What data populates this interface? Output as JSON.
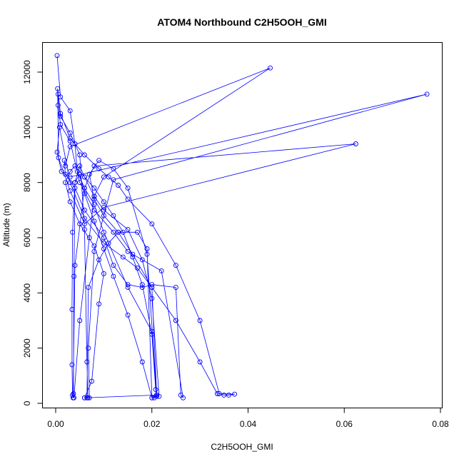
{
  "chart_data": {
    "type": "scatter",
    "title": "ATOM4 Northbound C2H5OOH_GMI",
    "xlabel": "C2H5OOH_GMI",
    "ylabel": "Altitude (m)",
    "xlim": [
      0.0,
      0.08
    ],
    "ylim": [
      0,
      12600
    ],
    "xticks": [
      0.0,
      0.02,
      0.04,
      0.06,
      0.08
    ],
    "xtick_labels": [
      "0.00",
      "0.02",
      "0.04",
      "0.06",
      "0.08"
    ],
    "yticks": [
      0,
      2000,
      4000,
      6000,
      8000,
      10000,
      12000
    ],
    "ytick_labels": [
      "0",
      "2000",
      "4000",
      "6000",
      "8000",
      "10000",
      "12000"
    ],
    "grid": false,
    "markers": "open-circle",
    "connected": true,
    "color": "#0000ff",
    "series": [
      {
        "x": [
          0.0003,
          0.001,
          0.003,
          0.004,
          0.0045,
          0.006,
          0.008,
          0.01,
          0.015,
          0.02,
          0.021,
          0.02,
          0.018,
          0.015,
          0.012,
          0.01,
          0.008,
          0.006,
          0.005,
          0.004,
          0.0035,
          0.0034,
          0.0034,
          0.0035,
          0.0038,
          0.005,
          0.007,
          0.008,
          0.01,
          0.0446,
          0.003,
          0.002,
          0.0018,
          0.002,
          0.004,
          0.006,
          0.01,
          0.012,
          0.015,
          0.018,
          0.02,
          0.025,
          0.026,
          0.0265,
          0.022,
          0.015,
          0.012,
          0.008,
          0.005,
          0.003,
          0.001,
          0.0005,
          0.0005,
          0.001,
          0.003,
          0.005,
          0.006,
          0.0065,
          0.0067,
          0.007,
          0.0068,
          0.008,
          0.012,
          0.0772,
          0.003,
          0.0012,
          0.0003,
          0.0008,
          0.003,
          0.006,
          0.01,
          0.014,
          0.017,
          0.02,
          0.021,
          0.0215,
          0.02,
          0.018,
          0.015,
          0.01,
          0.008,
          0.006,
          0.005,
          0.004,
          0.0038,
          0.0037,
          0.0036,
          0.004,
          0.006,
          0.008,
          0.0624,
          0.01,
          0.006,
          0.003,
          0.0006,
          0.0004,
          0.001,
          0.003,
          0.006,
          0.009,
          0.011,
          0.013,
          0.015,
          0.02,
          0.025,
          0.03,
          0.034,
          0.035,
          0.036,
          0.0372,
          0.0336,
          0.03,
          0.025,
          0.02,
          0.016,
          0.013,
          0.01,
          0.008,
          0.007,
          0.009,
          0.012,
          0.015,
          0.019,
          0.021,
          0.006,
          0.0065,
          0.0068,
          0.009,
          0.011,
          0.013,
          0.017,
          0.019,
          0.02,
          0.0205,
          0.021,
          0.0208,
          0.02,
          0.018,
          0.016,
          0.014,
          0.012,
          0.01,
          0.008,
          0.006,
          0.004,
          0.003,
          0.002,
          0.003,
          0.005,
          0.008,
          0.01,
          0.009,
          0.0075,
          0.006
        ],
        "y": [
          12600,
          11100,
          10600,
          9400,
          8400,
          7800,
          7200,
          6200,
          4200,
          2600,
          300,
          200,
          1500,
          3200,
          4600,
          5600,
          6600,
          7600,
          8300,
          8000,
          6200,
          3400,
          1400,
          300,
          200,
          3000,
          6000,
          7500,
          8200,
          12150,
          9300,
          8600,
          8800,
          8300,
          7800,
          7000,
          6000,
          5000,
          4300,
          4200,
          4300,
          4200,
          300,
          200,
          4800,
          5500,
          6200,
          7000,
          8000,
          9500,
          10100,
          10800,
          11200,
          10400,
          9800,
          9000,
          6300,
          1500,
          200,
          200,
          2000,
          5500,
          8100,
          11200,
          8200,
          8400,
          9100,
          10000,
          8000,
          6700,
          5800,
          5300,
          4900,
          4200,
          300,
          250,
          3800,
          5200,
          6300,
          7000,
          7500,
          8200,
          8600,
          8000,
          4600,
          350,
          200,
          5000,
          7800,
          8600,
          9400,
          7100,
          6500,
          7700,
          8900,
          11400,
          10500,
          9600,
          9000,
          8500,
          8200,
          7900,
          7400,
          6500,
          5000,
          3000,
          350,
          300,
          300,
          330,
          350,
          1500,
          3000,
          4200,
          5400,
          6200,
          6800,
          7400,
          8300,
          8800,
          8500,
          7800,
          5400,
          300,
          200,
          200,
          4200,
          5200,
          5800,
          6200,
          6200,
          5600,
          200,
          200,
          250,
          500,
          2500,
          4300,
          5300,
          6200,
          6800,
          7300,
          7800,
          8200,
          8600,
          8400,
          8000,
          7300,
          6500,
          5700,
          4700,
          3600,
          800,
          200
        ]
      }
    ]
  }
}
